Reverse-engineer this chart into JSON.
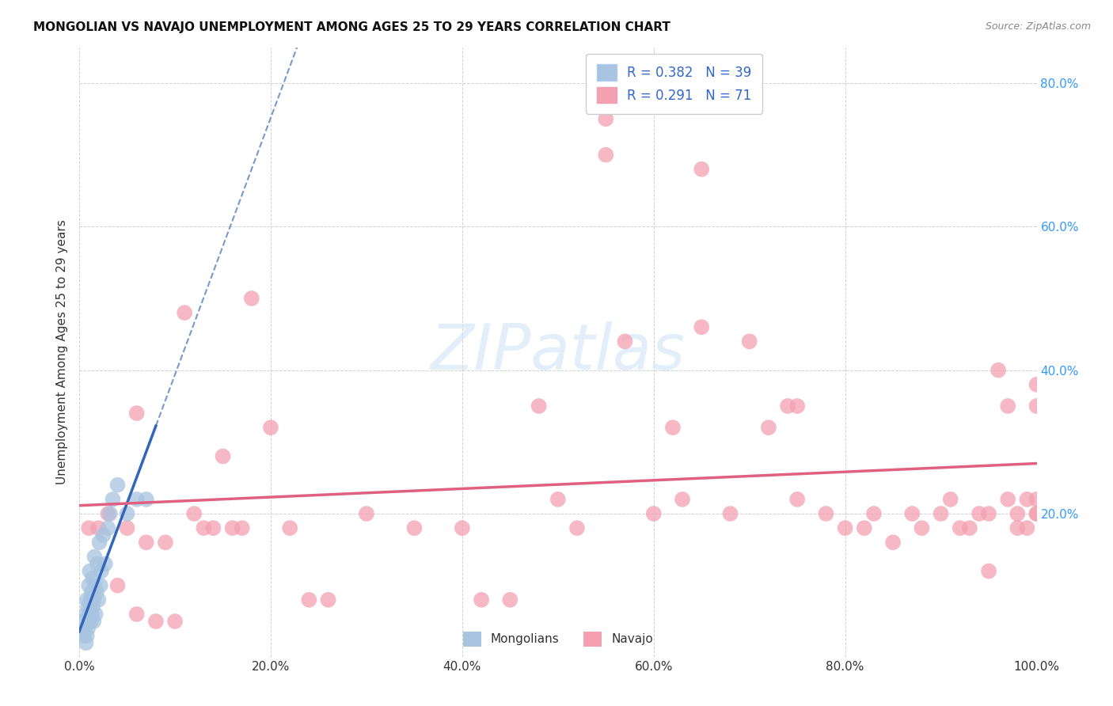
{
  "title": "MONGOLIAN VS NAVAJO UNEMPLOYMENT AMONG AGES 25 TO 29 YEARS CORRELATION CHART",
  "source": "Source: ZipAtlas.com",
  "ylabel": "Unemployment Among Ages 25 to 29 years",
  "xlim": [
    0.0,
    1.0
  ],
  "ylim": [
    0.0,
    0.85
  ],
  "mongolian_R": 0.382,
  "mongolian_N": 39,
  "navajo_R": 0.291,
  "navajo_N": 71,
  "mongolian_color": "#a8c4e0",
  "navajo_color": "#f4a0b0",
  "mongolian_line_color": "#3366bb",
  "navajo_line_color": "#e06080",
  "background_color": "#ffffff",
  "xtick_labels": [
    "0.0%",
    "20.0%",
    "40.0%",
    "60.0%",
    "80.0%",
    "100.0%"
  ],
  "xtick_values": [
    0.0,
    0.2,
    0.4,
    0.6,
    0.8,
    1.0
  ],
  "ytick_labels": [
    "20.0%",
    "40.0%",
    "60.0%",
    "80.0%"
  ],
  "ytick_values": [
    0.2,
    0.4,
    0.6,
    0.8
  ],
  "mongolian_x": [
    0.003,
    0.005,
    0.006,
    0.007,
    0.007,
    0.008,
    0.008,
    0.009,
    0.009,
    0.01,
    0.01,
    0.011,
    0.011,
    0.012,
    0.012,
    0.013,
    0.013,
    0.014,
    0.014,
    0.015,
    0.015,
    0.016,
    0.016,
    0.017,
    0.018,
    0.019,
    0.02,
    0.021,
    0.022,
    0.023,
    0.025,
    0.027,
    0.03,
    0.032,
    0.035,
    0.04,
    0.05,
    0.06,
    0.07
  ],
  "mongolian_y": [
    0.05,
    0.03,
    0.04,
    0.02,
    0.06,
    0.03,
    0.08,
    0.04,
    0.07,
    0.05,
    0.1,
    0.06,
    0.12,
    0.05,
    0.08,
    0.06,
    0.09,
    0.07,
    0.11,
    0.05,
    0.08,
    0.1,
    0.14,
    0.06,
    0.09,
    0.13,
    0.08,
    0.16,
    0.1,
    0.12,
    0.17,
    0.13,
    0.18,
    0.2,
    0.22,
    0.24,
    0.2,
    0.22,
    0.22
  ],
  "navajo_x": [
    0.01,
    0.02,
    0.03,
    0.04,
    0.05,
    0.06,
    0.06,
    0.07,
    0.08,
    0.09,
    0.1,
    0.11,
    0.12,
    0.13,
    0.14,
    0.15,
    0.16,
    0.17,
    0.18,
    0.2,
    0.22,
    0.24,
    0.26,
    0.3,
    0.35,
    0.4,
    0.42,
    0.45,
    0.48,
    0.5,
    0.52,
    0.55,
    0.57,
    0.6,
    0.62,
    0.63,
    0.65,
    0.68,
    0.7,
    0.72,
    0.74,
    0.75,
    0.78,
    0.8,
    0.82,
    0.83,
    0.85,
    0.87,
    0.88,
    0.9,
    0.91,
    0.92,
    0.93,
    0.94,
    0.95,
    0.95,
    0.96,
    0.97,
    0.97,
    0.98,
    0.98,
    0.99,
    0.99,
    1.0,
    1.0,
    1.0,
    1.0,
    1.0,
    0.55,
    0.65,
    0.75
  ],
  "navajo_y": [
    0.18,
    0.18,
    0.2,
    0.1,
    0.18,
    0.06,
    0.34,
    0.16,
    0.05,
    0.16,
    0.05,
    0.48,
    0.2,
    0.18,
    0.18,
    0.28,
    0.18,
    0.18,
    0.5,
    0.32,
    0.18,
    0.08,
    0.08,
    0.2,
    0.18,
    0.18,
    0.08,
    0.08,
    0.35,
    0.22,
    0.18,
    0.7,
    0.44,
    0.2,
    0.32,
    0.22,
    0.46,
    0.2,
    0.44,
    0.32,
    0.35,
    0.22,
    0.2,
    0.18,
    0.18,
    0.2,
    0.16,
    0.2,
    0.18,
    0.2,
    0.22,
    0.18,
    0.18,
    0.2,
    0.2,
    0.12,
    0.4,
    0.22,
    0.35,
    0.2,
    0.18,
    0.22,
    0.18,
    0.38,
    0.2,
    0.22,
    0.2,
    0.35,
    0.75,
    0.68,
    0.35
  ]
}
